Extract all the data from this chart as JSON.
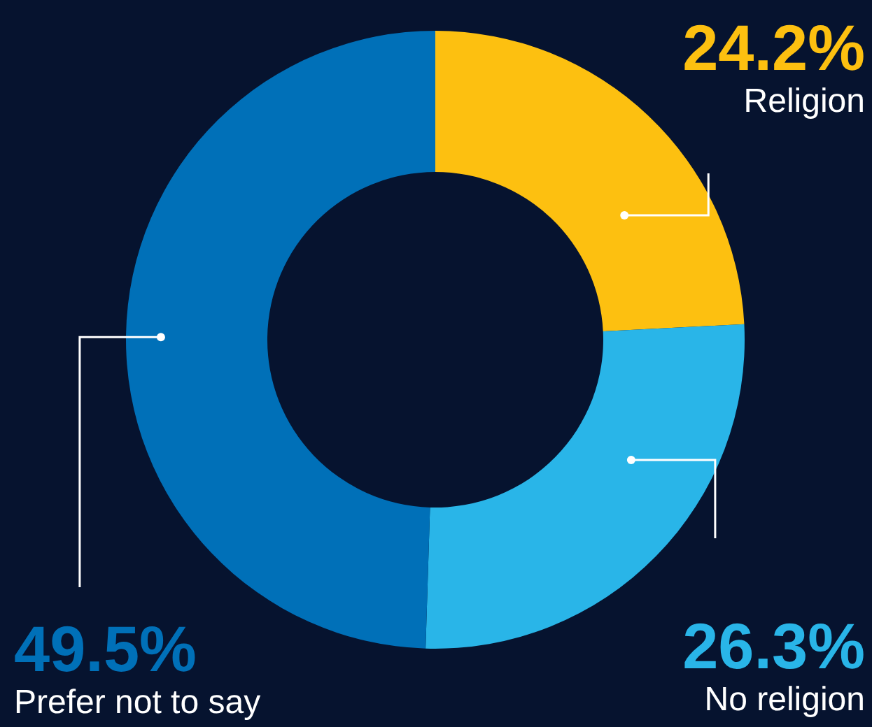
{
  "chart_data": {
    "type": "donut",
    "categories": [
      "Religion",
      "No religion",
      "Prefer not to say"
    ],
    "values": [
      24.2,
      26.3,
      49.5
    ],
    "colors": [
      "#fdc010",
      "#29b5e8",
      "#0070b8"
    ],
    "value_labels": [
      "24.2%",
      "26.3%",
      "49.5%"
    ]
  }
}
